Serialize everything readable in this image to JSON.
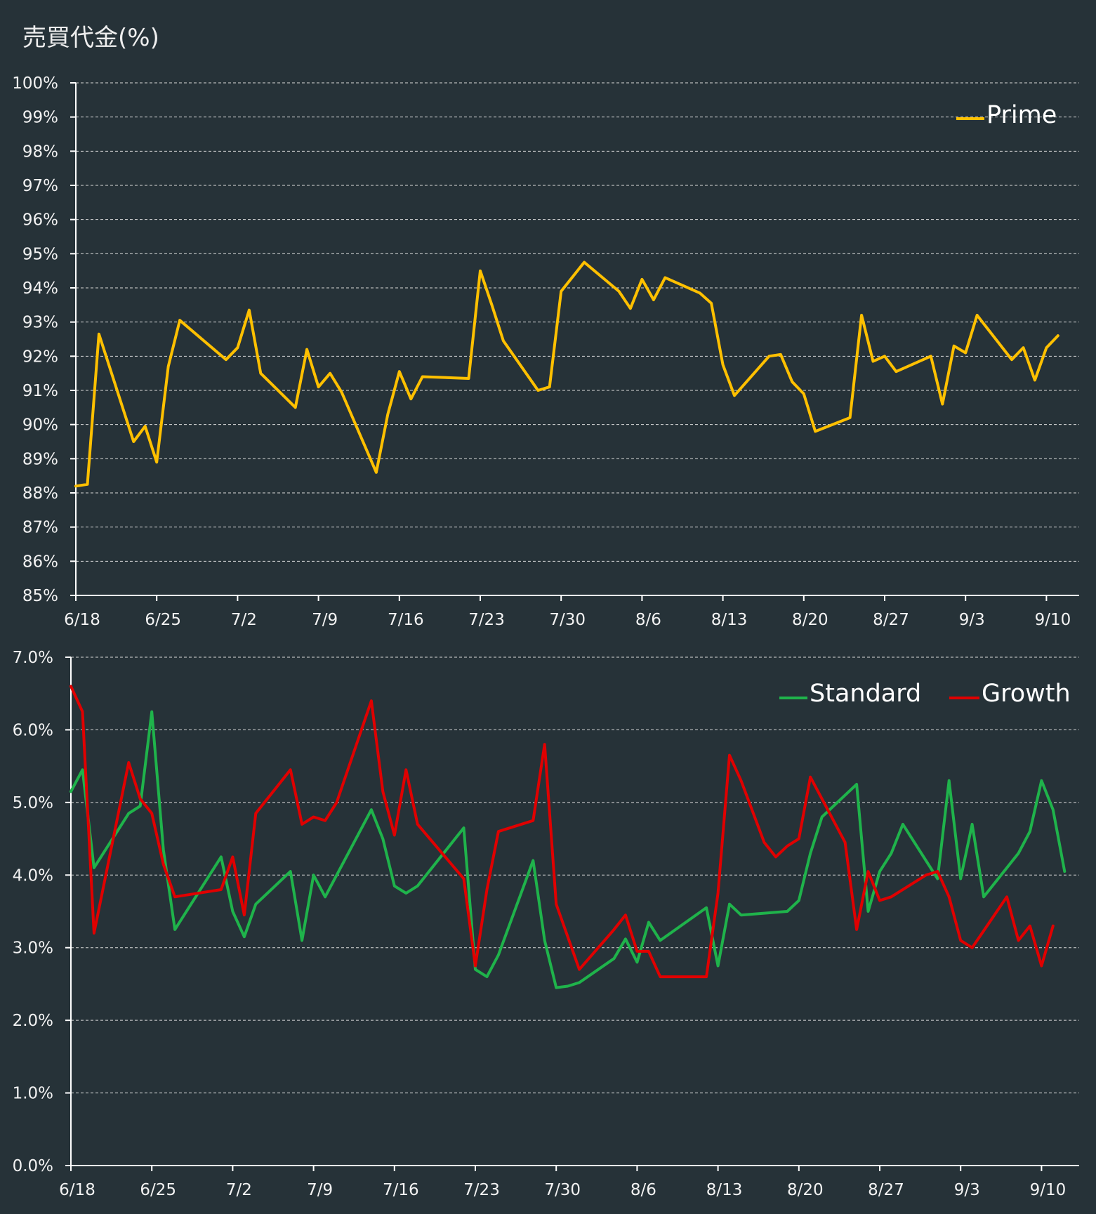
{
  "title": "売買代金(%)",
  "x_tick_labels": [
    "6/18",
    "6/25",
    "7/2",
    "7/9",
    "7/16",
    "7/23",
    "7/30",
    "8/6",
    "8/13",
    "8/20",
    "8/27",
    "9/3",
    "9/10"
  ],
  "chart_data": [
    {
      "type": "line",
      "ylim": [
        85,
        100
      ],
      "yticks": [
        "100%",
        "99%",
        "98%",
        "97%",
        "96%",
        "95%",
        "94%",
        "93%",
        "92%",
        "91%",
        "90%",
        "89%",
        "88%",
        "87%",
        "86%",
        "85%"
      ],
      "grid": true,
      "legend_position": "top-right",
      "series": [
        {
          "name": "Prime",
          "color": "#FFC000",
          "values": [
            [
              0,
              88.2
            ],
            [
              1,
              88.25
            ],
            [
              2,
              92.65
            ],
            [
              5,
              89.5
            ],
            [
              6,
              89.95
            ],
            [
              7,
              88.9
            ],
            [
              8,
              91.7
            ],
            [
              9,
              93.05
            ],
            [
              13,
              91.9
            ],
            [
              14,
              92.25
            ],
            [
              15,
              93.35
            ],
            [
              16,
              91.5
            ],
            [
              19,
              90.5
            ],
            [
              20,
              92.2
            ],
            [
              21,
              91.1
            ],
            [
              22,
              91.5
            ],
            [
              23,
              90.95
            ],
            [
              26,
              88.6
            ],
            [
              27,
              90.3
            ],
            [
              28,
              91.55
            ],
            [
              29,
              90.75
            ],
            [
              30,
              91.4
            ],
            [
              34,
              91.35
            ],
            [
              35,
              94.5
            ],
            [
              36,
              93.5
            ],
            [
              37,
              92.45
            ],
            [
              40,
              91.0
            ],
            [
              41,
              91.1
            ],
            [
              42,
              93.9
            ],
            [
              44,
              94.75
            ],
            [
              47,
              93.9
            ],
            [
              48,
              93.4
            ],
            [
              49,
              94.25
            ],
            [
              50,
              93.65
            ],
            [
              51,
              94.3
            ],
            [
              54,
              93.85
            ],
            [
              55,
              93.55
            ],
            [
              56,
              91.75
            ],
            [
              57,
              90.85
            ],
            [
              60,
              92.0
            ],
            [
              61,
              92.05
            ],
            [
              62,
              91.25
            ],
            [
              63,
              90.9
            ],
            [
              64,
              89.8
            ],
            [
              67,
              90.2
            ],
            [
              68,
              93.2
            ],
            [
              69,
              91.85
            ],
            [
              70,
              92.0
            ],
            [
              71,
              91.55
            ],
            [
              74,
              92.0
            ],
            [
              75,
              90.6
            ],
            [
              76,
              92.3
            ],
            [
              77,
              92.1
            ],
            [
              78,
              93.2
            ],
            [
              81,
              91.9
            ],
            [
              82,
              92.25
            ],
            [
              83,
              91.3
            ],
            [
              84,
              92.25
            ],
            [
              85,
              92.6
            ]
          ]
        }
      ]
    },
    {
      "type": "line",
      "ylim": [
        0,
        7
      ],
      "yticks": [
        "7.0%",
        "6.0%",
        "5.0%",
        "4.0%",
        "3.0%",
        "2.0%",
        "1.0%",
        "0.0%"
      ],
      "grid": true,
      "legend_position": "top-right",
      "series": [
        {
          "name": "Standard",
          "color": "#1FB34B",
          "values": [
            [
              0,
              5.15
            ],
            [
              1,
              5.45
            ],
            [
              2,
              4.1
            ],
            [
              5,
              4.85
            ],
            [
              6,
              4.95
            ],
            [
              7,
              6.25
            ],
            [
              8,
              4.35
            ],
            [
              9,
              3.25
            ],
            [
              13,
              4.25
            ],
            [
              14,
              3.5
            ],
            [
              15,
              3.15
            ],
            [
              16,
              3.6
            ],
            [
              19,
              4.05
            ],
            [
              20,
              3.1
            ],
            [
              21,
              4.0
            ],
            [
              22,
              3.7
            ],
            [
              26,
              4.9
            ],
            [
              27,
              4.5
            ],
            [
              28,
              3.85
            ],
            [
              29,
              3.75
            ],
            [
              30,
              3.85
            ],
            [
              34,
              4.65
            ],
            [
              35,
              2.7
            ],
            [
              36,
              2.6
            ],
            [
              37,
              2.9
            ],
            [
              40,
              4.2
            ],
            [
              41,
              3.1
            ],
            [
              42,
              2.45
            ],
            [
              43,
              2.47
            ],
            [
              44,
              2.52
            ],
            [
              47,
              2.85
            ],
            [
              48,
              3.12
            ],
            [
              49,
              2.8
            ],
            [
              50,
              3.35
            ],
            [
              51,
              3.1
            ],
            [
              55,
              3.55
            ],
            [
              56,
              2.75
            ],
            [
              57,
              3.6
            ],
            [
              58,
              3.45
            ],
            [
              62,
              3.5
            ],
            [
              63,
              3.65
            ],
            [
              64,
              4.3
            ],
            [
              65,
              4.8
            ],
            [
              68,
              5.25
            ],
            [
              69,
              3.5
            ],
            [
              70,
              4.05
            ],
            [
              71,
              4.3
            ],
            [
              72,
              4.7
            ],
            [
              75,
              3.95
            ],
            [
              76,
              5.3
            ],
            [
              77,
              3.95
            ],
            [
              78,
              4.7
            ],
            [
              79,
              3.7
            ],
            [
              82,
              4.3
            ],
            [
              83,
              4.6
            ],
            [
              84,
              5.3
            ],
            [
              85,
              4.9
            ],
            [
              86,
              4.05
            ]
          ]
        },
        {
          "name": "Growth",
          "color": "#E00000",
          "values": [
            [
              0,
              6.6
            ],
            [
              1,
              6.25
            ],
            [
              2,
              3.2
            ],
            [
              5,
              5.55
            ],
            [
              6,
              5.05
            ],
            [
              7,
              4.85
            ],
            [
              8,
              4.15
            ],
            [
              9,
              3.7
            ],
            [
              13,
              3.8
            ],
            [
              14,
              4.25
            ],
            [
              15,
              3.45
            ],
            [
              16,
              4.85
            ],
            [
              19,
              5.45
            ],
            [
              20,
              4.7
            ],
            [
              21,
              4.8
            ],
            [
              22,
              4.75
            ],
            [
              23,
              5.0
            ],
            [
              26,
              6.4
            ],
            [
              27,
              5.15
            ],
            [
              28,
              4.55
            ],
            [
              29,
              5.45
            ],
            [
              30,
              4.7
            ],
            [
              34,
              3.95
            ],
            [
              35,
              2.75
            ],
            [
              36,
              3.8
            ],
            [
              37,
              4.6
            ],
            [
              40,
              4.75
            ],
            [
              41,
              5.8
            ],
            [
              42,
              3.6
            ],
            [
              44,
              2.7
            ],
            [
              47,
              3.25
            ],
            [
              48,
              3.45
            ],
            [
              49,
              2.95
            ],
            [
              50,
              2.95
            ],
            [
              51,
              2.6
            ],
            [
              55,
              2.6
            ],
            [
              56,
              3.75
            ],
            [
              57,
              5.65
            ],
            [
              58,
              5.3
            ],
            [
              60,
              4.45
            ],
            [
              61,
              4.25
            ],
            [
              62,
              4.4
            ],
            [
              63,
              4.5
            ],
            [
              64,
              5.35
            ],
            [
              67,
              4.45
            ],
            [
              68,
              3.25
            ],
            [
              69,
              4.05
            ],
            [
              70,
              3.65
            ],
            [
              71,
              3.7
            ],
            [
              74,
              4.0
            ],
            [
              75,
              4.05
            ],
            [
              76,
              3.7
            ],
            [
              77,
              3.1
            ],
            [
              78,
              3.0
            ],
            [
              81,
              3.7
            ],
            [
              82,
              3.1
            ],
            [
              83,
              3.3
            ],
            [
              84,
              2.75
            ],
            [
              85,
              3.3
            ]
          ]
        }
      ]
    }
  ]
}
